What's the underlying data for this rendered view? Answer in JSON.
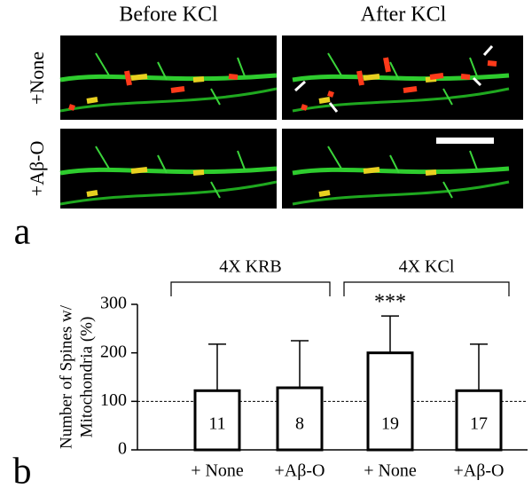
{
  "panel_a": {
    "label": "a",
    "columns": [
      "Before KCl",
      "After KCl"
    ],
    "rows": [
      "+None",
      "+Aβ-O"
    ]
  },
  "chart_data": {
    "type": "bar",
    "panel_label": "b",
    "y_label": [
      "Number of Spines w/",
      "Mitochondria (%)"
    ],
    "groups": [
      "4X KRB",
      "4X KCl"
    ],
    "categories": [
      "+ None",
      "+Aβ-O",
      "+ None",
      "+Aβ-O"
    ],
    "values": [
      122,
      128,
      200,
      122
    ],
    "errors": [
      96,
      97,
      76,
      96
    ],
    "n": [
      11,
      8,
      19,
      17
    ],
    "significance": [
      null,
      null,
      "***",
      null
    ],
    "reference_line": 100,
    "color": "#ffffff",
    "ylim": [
      0,
      300
    ],
    "yticks": [
      0,
      100,
      200,
      300
    ]
  }
}
